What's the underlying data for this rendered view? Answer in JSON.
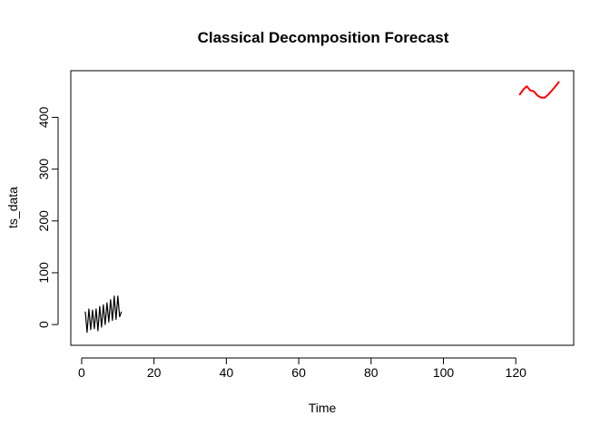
{
  "chart_data": {
    "type": "line",
    "title": "Classical Decomposition Forecast",
    "xlabel": "Time",
    "ylabel": "ts_data",
    "xlim": [
      -3,
      136
    ],
    "ylim": [
      -40,
      490
    ],
    "x_ticks": [
      0,
      20,
      40,
      60,
      80,
      100,
      120
    ],
    "y_ticks": [
      0,
      100,
      200,
      300,
      400
    ],
    "grid": false,
    "legend": "none",
    "series": [
      {
        "color": "#000000",
        "x": [
          1.0,
          1.5,
          2.0,
          2.5,
          3.0,
          3.5,
          4.0,
          4.5,
          5.0,
          5.5,
          6.0,
          6.5,
          7.0,
          7.5,
          8.0,
          8.5,
          9.0,
          9.5,
          10.0,
          10.5,
          11.0
        ],
        "y": [
          25,
          -15,
          30,
          -10,
          28,
          -8,
          30,
          -12,
          35,
          -5,
          38,
          0,
          42,
          5,
          48,
          8,
          55,
          10,
          55,
          15,
          25
        ]
      },
      {
        "color": "#ff0000",
        "x": [
          121,
          122,
          123,
          124,
          125,
          126,
          127,
          128,
          129,
          130,
          131,
          132
        ],
        "y": [
          443,
          453,
          460,
          452,
          450,
          442,
          438,
          438,
          444,
          452,
          460,
          469
        ]
      }
    ]
  }
}
